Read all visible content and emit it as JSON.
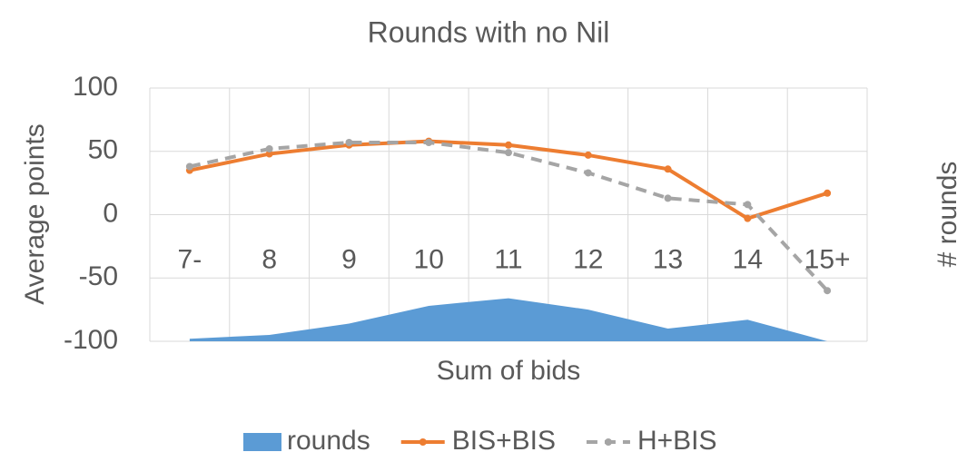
{
  "chart_data": {
    "type": "line",
    "title": "Rounds with no Nil",
    "x_label": "Sum of bids",
    "y_label": "Average points",
    "y2_label": "# rounds",
    "categories": [
      "7-",
      "8",
      "9",
      "10",
      "11",
      "12",
      "13",
      "14",
      "15+"
    ],
    "series": [
      {
        "name": "rounds",
        "type": "area",
        "color": "#5b9bd5",
        "values": [
          -98,
          -95,
          -86,
          -72,
          -66,
          -75,
          -90,
          -83,
          -100
        ]
      },
      {
        "name": "BIS+BIS",
        "type": "line",
        "color": "#ed7d31",
        "dashed": false,
        "values": [
          35,
          48,
          55,
          58,
          55,
          47,
          36,
          -3,
          17
        ]
      },
      {
        "name": "H+BIS",
        "type": "line",
        "color": "#a5a5a5",
        "dashed": true,
        "values": [
          38,
          52,
          57,
          57,
          49,
          33,
          13,
          8,
          -60
        ]
      }
    ],
    "ylim": [
      -100,
      100
    ],
    "yticks": [
      -100,
      -50,
      0,
      50,
      100
    ],
    "grid": true,
    "legend": "bottom"
  }
}
